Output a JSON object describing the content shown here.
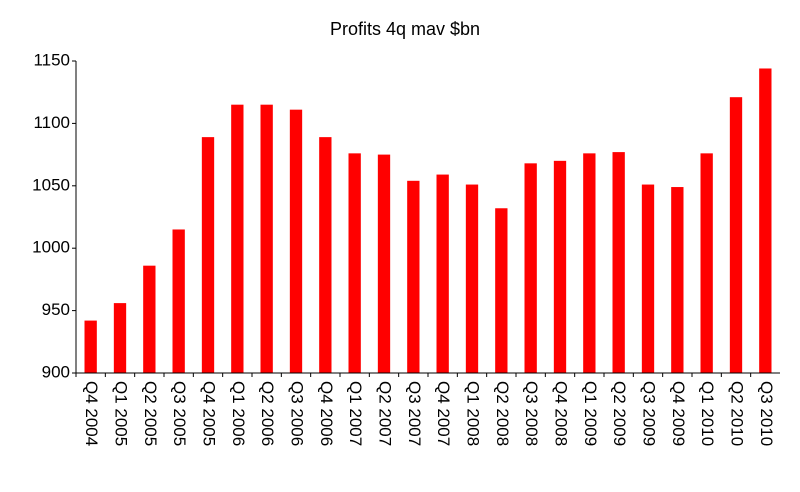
{
  "chart_data": {
    "type": "bar",
    "title": "Profits 4q mav $bn",
    "categories": [
      "Q4 2004",
      "Q1 2005",
      "Q2 2005",
      "Q3 2005",
      "Q4 2005",
      "Q1 2006",
      "Q2 2006",
      "Q3 2006",
      "Q4 2006",
      "Q1 2007",
      "Q2 2007",
      "Q3 2007",
      "Q4 2007",
      "Q1 2008",
      "Q2 2008",
      "Q3 2008",
      "Q4 2008",
      "Q1 2009",
      "Q2 2009",
      "Q3 2009",
      "Q4 2009",
      "Q1 2010",
      "Q2 2010",
      "Q3 2010"
    ],
    "values": [
      942,
      956,
      986,
      1015,
      1089,
      1115,
      1115,
      1111,
      1089,
      1076,
      1075,
      1054,
      1059,
      1051,
      1032,
      1068,
      1070,
      1076,
      1077,
      1051,
      1049,
      1076,
      1121,
      1144
    ],
    "color": "#ff0000",
    "ylim": [
      900,
      1150
    ],
    "yticks": [
      900,
      950,
      1000,
      1050,
      1100,
      1150
    ],
    "grid": false
  }
}
